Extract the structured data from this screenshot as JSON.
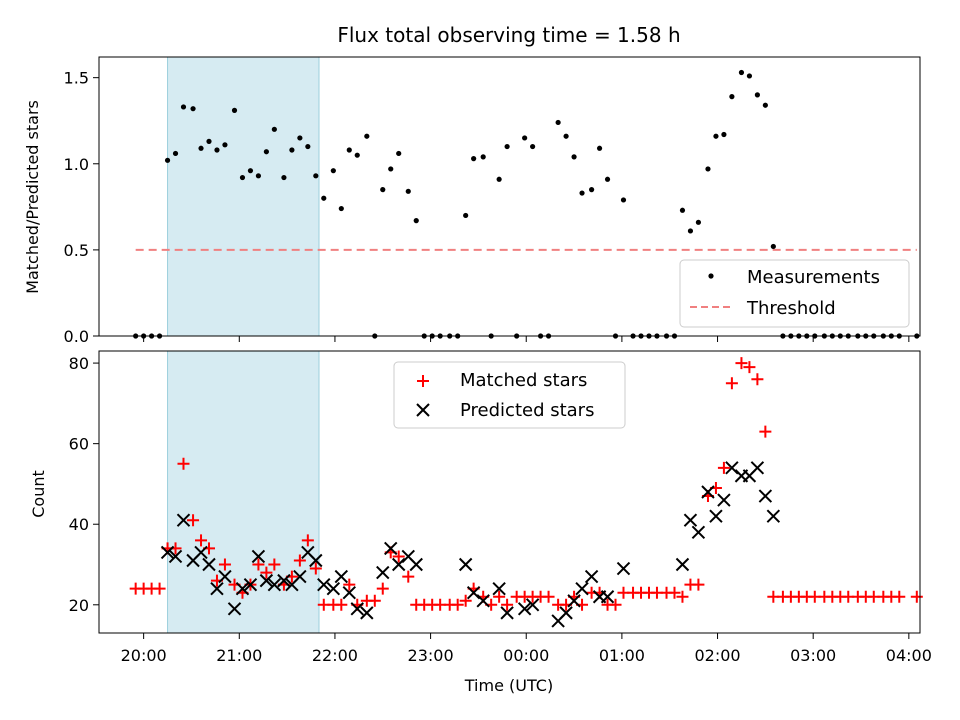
{
  "chart_data": [
    {
      "type": "scatter",
      "title": "Flux total observing time = 1.58 h",
      "xlabel": "",
      "ylabel": "Matched/Predicted stars",
      "ylim": [
        0,
        1.62
      ],
      "yticks": [
        "0.0",
        "0.5",
        "1.0",
        "1.5"
      ],
      "xlim": [
        "19:32",
        "04:07"
      ],
      "shaded_interval": [
        "20:15",
        "21:50"
      ],
      "legend_position": "lower right",
      "series": [
        {
          "name": "Measurements",
          "marker": "dot",
          "color": "#000000",
          "points": [
            [
              "19:55",
              0
            ],
            [
              "20:00",
              0
            ],
            [
              "20:05",
              0
            ],
            [
              "20:10",
              0
            ],
            [
              "20:15",
              1.02
            ],
            [
              "20:20",
              1.06
            ],
            [
              "20:25",
              1.33
            ],
            [
              "20:31",
              1.32
            ],
            [
              "20:36",
              1.09
            ],
            [
              "20:41",
              1.13
            ],
            [
              "20:46",
              1.08
            ],
            [
              "20:51",
              1.11
            ],
            [
              "20:57",
              1.31
            ],
            [
              "21:02",
              0.92
            ],
            [
              "21:07",
              0.96
            ],
            [
              "21:12",
              0.93
            ],
            [
              "21:17",
              1.07
            ],
            [
              "21:22",
              1.2
            ],
            [
              "21:28",
              0.92
            ],
            [
              "21:33",
              1.08
            ],
            [
              "21:38",
              1.15
            ],
            [
              "21:43",
              1.1
            ],
            [
              "21:48",
              0.93
            ],
            [
              "21:53",
              0.8
            ],
            [
              "21:59",
              0.96
            ],
            [
              "22:04",
              0.74
            ],
            [
              "22:09",
              1.08
            ],
            [
              "22:14",
              1.05
            ],
            [
              "22:20",
              1.16
            ],
            [
              "22:25",
              0
            ],
            [
              "22:30",
              0.85
            ],
            [
              "22:35",
              0.97
            ],
            [
              "22:40",
              1.06
            ],
            [
              "22:46",
              0.84
            ],
            [
              "22:51",
              0.67
            ],
            [
              "22:56",
              0
            ],
            [
              "23:01",
              0
            ],
            [
              "23:06",
              0
            ],
            [
              "23:12",
              0
            ],
            [
              "23:17",
              0
            ],
            [
              "23:22",
              0.7
            ],
            [
              "23:27",
              1.03
            ],
            [
              "23:33",
              1.04
            ],
            [
              "23:38",
              0
            ],
            [
              "23:43",
              0.91
            ],
            [
              "23:48",
              1.1
            ],
            [
              "23:54",
              0
            ],
            [
              "23:59",
              1.15
            ],
            [
              "00:04",
              1.1
            ],
            [
              "00:09",
              0
            ],
            [
              "00:14",
              0
            ],
            [
              "00:20",
              1.24
            ],
            [
              "00:25",
              1.16
            ],
            [
              "00:30",
              1.04
            ],
            [
              "00:35",
              0.83
            ],
            [
              "00:41",
              0.85
            ],
            [
              "00:46",
              1.09
            ],
            [
              "00:51",
              0.91
            ],
            [
              "00:56",
              0
            ],
            [
              "01:01",
              0.79
            ],
            [
              "01:07",
              0
            ],
            [
              "01:12",
              0
            ],
            [
              "01:17",
              0
            ],
            [
              "01:22",
              0
            ],
            [
              "01:28",
              0
            ],
            [
              "01:33",
              0
            ],
            [
              "01:38",
              0.73
            ],
            [
              "01:43",
              0.61
            ],
            [
              "01:48",
              0.66
            ],
            [
              "01:54",
              0.97
            ],
            [
              "01:59",
              1.16
            ],
            [
              "02:04",
              1.17
            ],
            [
              "02:09",
              1.39
            ],
            [
              "02:15",
              1.53
            ],
            [
              "02:20",
              1.51
            ],
            [
              "02:25",
              1.4
            ],
            [
              "02:30",
              1.34
            ],
            [
              "02:35",
              0.52
            ],
            [
              "02:41",
              0
            ],
            [
              "02:46",
              0
            ],
            [
              "02:51",
              0
            ],
            [
              "02:56",
              0
            ],
            [
              "03:01",
              0
            ],
            [
              "03:07",
              0
            ],
            [
              "03:12",
              0
            ],
            [
              "03:17",
              0
            ],
            [
              "03:22",
              0
            ],
            [
              "03:28",
              0
            ],
            [
              "03:33",
              0
            ],
            [
              "03:38",
              0
            ],
            [
              "03:44",
              0
            ],
            [
              "03:49",
              0
            ],
            [
              "03:54",
              0
            ],
            [
              "04:05",
              0
            ]
          ]
        },
        {
          "name": "Threshold",
          "type": "line",
          "style": "dashed",
          "color": "#f08080",
          "points": [
            [
              "19:55",
              0.5
            ],
            [
              "04:05",
              0.5
            ]
          ]
        }
      ]
    },
    {
      "type": "scatter",
      "title": "",
      "xlabel": "Time (UTC)",
      "ylabel": "Count",
      "ylim": [
        13,
        83
      ],
      "yticks": [
        "20",
        "40",
        "60",
        "80"
      ],
      "xlim": [
        "19:32",
        "04:07"
      ],
      "xticks": [
        "20:00",
        "21:00",
        "22:00",
        "23:00",
        "00:00",
        "01:00",
        "02:00",
        "03:00",
        "04:00"
      ],
      "shaded_interval": [
        "20:15",
        "21:50"
      ],
      "legend_position": "upper center",
      "series": [
        {
          "name": "Matched stars",
          "marker": "plus",
          "color": "#ff0000",
          "points": [
            [
              "19:55",
              24
            ],
            [
              "20:00",
              24
            ],
            [
              "20:05",
              24
            ],
            [
              "20:10",
              24
            ],
            [
              "20:15",
              34
            ],
            [
              "20:20",
              34
            ],
            [
              "20:25",
              55
            ],
            [
              "20:31",
              41
            ],
            [
              "20:36",
              36
            ],
            [
              "20:41",
              34
            ],
            [
              "20:46",
              26
            ],
            [
              "20:51",
              30
            ],
            [
              "20:57",
              25
            ],
            [
              "21:02",
              23
            ],
            [
              "21:07",
              25
            ],
            [
              "21:12",
              30
            ],
            [
              "21:17",
              28
            ],
            [
              "21:22",
              30
            ],
            [
              "21:28",
              25
            ],
            [
              "21:33",
              27
            ],
            [
              "21:38",
              31
            ],
            [
              "21:43",
              36
            ],
            [
              "21:48",
              29
            ],
            [
              "21:53",
              20
            ],
            [
              "21:59",
              20
            ],
            [
              "22:04",
              20
            ],
            [
              "22:09",
              25
            ],
            [
              "22:14",
              20
            ],
            [
              "22:20",
              21
            ],
            [
              "22:25",
              21
            ],
            [
              "22:30",
              24
            ],
            [
              "22:35",
              33
            ],
            [
              "22:40",
              32
            ],
            [
              "22:46",
              27
            ],
            [
              "22:51",
              20
            ],
            [
              "22:56",
              20
            ],
            [
              "23:01",
              20
            ],
            [
              "23:06",
              20
            ],
            [
              "23:12",
              20
            ],
            [
              "23:17",
              20
            ],
            [
              "23:22",
              21
            ],
            [
              "23:27",
              24
            ],
            [
              "23:33",
              22
            ],
            [
              "23:38",
              20
            ],
            [
              "23:43",
              22
            ],
            [
              "23:48",
              20
            ],
            [
              "23:54",
              22
            ],
            [
              "23:59",
              22
            ],
            [
              "00:04",
              22
            ],
            [
              "00:09",
              22
            ],
            [
              "00:14",
              22
            ],
            [
              "00:20",
              20
            ],
            [
              "00:25",
              20
            ],
            [
              "00:30",
              22
            ],
            [
              "00:35",
              20
            ],
            [
              "00:41",
              23
            ],
            [
              "00:46",
              23
            ],
            [
              "00:51",
              20
            ],
            [
              "00:56",
              20
            ],
            [
              "01:01",
              23
            ],
            [
              "01:07",
              23
            ],
            [
              "01:12",
              23
            ],
            [
              "01:17",
              23
            ],
            [
              "01:22",
              23
            ],
            [
              "01:28",
              23
            ],
            [
              "01:33",
              23
            ],
            [
              "01:38",
              22
            ],
            [
              "01:43",
              25
            ],
            [
              "01:48",
              25
            ],
            [
              "01:54",
              47
            ],
            [
              "01:59",
              49
            ],
            [
              "02:04",
              54
            ],
            [
              "02:09",
              75
            ],
            [
              "02:15",
              80
            ],
            [
              "02:20",
              79
            ],
            [
              "02:25",
              76
            ],
            [
              "02:30",
              63
            ],
            [
              "02:35",
              22
            ],
            [
              "02:41",
              22
            ],
            [
              "02:46",
              22
            ],
            [
              "02:51",
              22
            ],
            [
              "02:56",
              22
            ],
            [
              "03:01",
              22
            ],
            [
              "03:07",
              22
            ],
            [
              "03:12",
              22
            ],
            [
              "03:17",
              22
            ],
            [
              "03:22",
              22
            ],
            [
              "03:28",
              22
            ],
            [
              "03:33",
              22
            ],
            [
              "03:38",
              22
            ],
            [
              "03:44",
              22
            ],
            [
              "03:49",
              22
            ],
            [
              "03:54",
              22
            ],
            [
              "04:05",
              22
            ]
          ]
        },
        {
          "name": "Predicted stars",
          "marker": "x",
          "color": "#000000",
          "points": [
            [
              "20:15",
              33
            ],
            [
              "20:20",
              32
            ],
            [
              "20:25",
              41
            ],
            [
              "20:31",
              31
            ],
            [
              "20:36",
              33
            ],
            [
              "20:41",
              30
            ],
            [
              "20:46",
              24
            ],
            [
              "20:51",
              27
            ],
            [
              "20:57",
              19
            ],
            [
              "21:02",
              24
            ],
            [
              "21:07",
              25
            ],
            [
              "21:12",
              32
            ],
            [
              "21:17",
              26
            ],
            [
              "21:22",
              25
            ],
            [
              "21:28",
              26
            ],
            [
              "21:33",
              25
            ],
            [
              "21:38",
              27
            ],
            [
              "21:43",
              33
            ],
            [
              "21:48",
              31
            ],
            [
              "21:53",
              25
            ],
            [
              "21:59",
              24
            ],
            [
              "22:04",
              27
            ],
            [
              "22:09",
              23
            ],
            [
              "22:14",
              19
            ],
            [
              "22:20",
              18
            ],
            [
              "22:30",
              28
            ],
            [
              "22:35",
              34
            ],
            [
              "22:40",
              30
            ],
            [
              "22:46",
              32
            ],
            [
              "22:51",
              30
            ],
            [
              "23:22",
              30
            ],
            [
              "23:27",
              23
            ],
            [
              "23:33",
              21
            ],
            [
              "23:43",
              24
            ],
            [
              "23:48",
              18
            ],
            [
              "23:59",
              19
            ],
            [
              "00:04",
              20
            ],
            [
              "00:20",
              16
            ],
            [
              "00:25",
              18
            ],
            [
              "00:30",
              21
            ],
            [
              "00:35",
              24
            ],
            [
              "00:41",
              27
            ],
            [
              "00:46",
              22
            ],
            [
              "00:51",
              22
            ],
            [
              "01:01",
              29
            ],
            [
              "01:38",
              30
            ],
            [
              "01:43",
              41
            ],
            [
              "01:48",
              38
            ],
            [
              "01:54",
              48
            ],
            [
              "01:59",
              42
            ],
            [
              "02:04",
              46
            ],
            [
              "02:09",
              54
            ],
            [
              "02:15",
              52
            ],
            [
              "02:20",
              52
            ],
            [
              "02:25",
              54
            ],
            [
              "02:30",
              47
            ],
            [
              "02:35",
              42
            ]
          ]
        }
      ]
    }
  ]
}
